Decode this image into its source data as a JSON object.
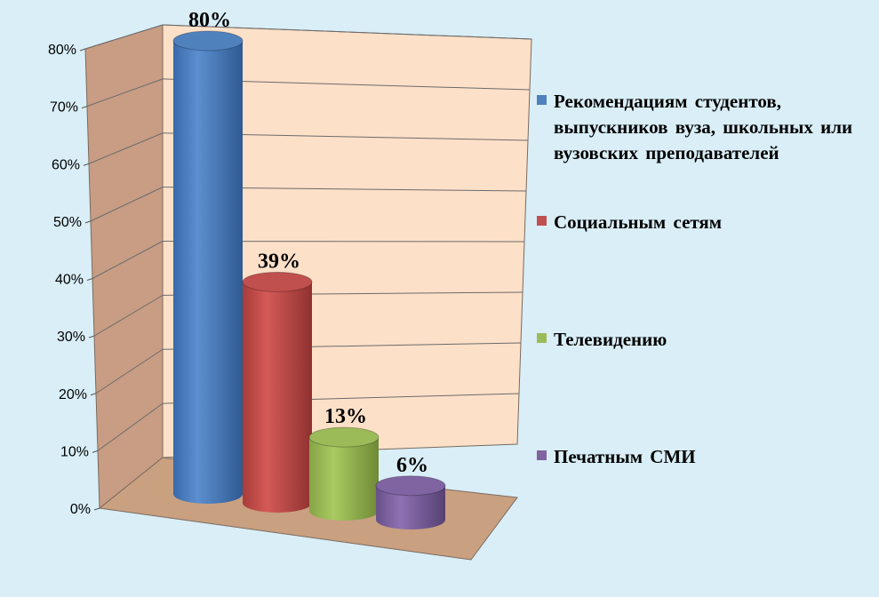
{
  "chart_data": {
    "type": "bar",
    "style": "3d-cylinder",
    "categories": [
      "Рекомендациям студентов, выпускников вуза, школьных или вузовских преподавателей",
      "Социальным сетям",
      "Телевидению",
      "Печатным СМИ"
    ],
    "values": [
      80,
      39,
      13,
      6
    ],
    "data_labels": [
      "80%",
      "39%",
      "13%",
      "6%"
    ],
    "colors": [
      "#4f81bd",
      "#c0504d",
      "#9bbb59",
      "#8064a2"
    ],
    "y_ticks": [
      "0%",
      "10%",
      "20%",
      "30%",
      "40%",
      "50%",
      "60%",
      "70%",
      "80%"
    ],
    "ylim": [
      0,
      80
    ],
    "grid": true,
    "legend": "right",
    "title": "",
    "xlabel": "",
    "ylabel": ""
  }
}
